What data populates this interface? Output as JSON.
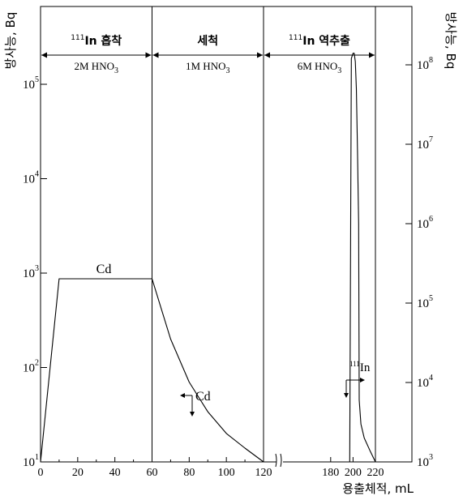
{
  "chart_data": {
    "type": "line",
    "ylabel_left": "방사능, Bq",
    "ylabel_right": "방사능, Bq",
    "xlabel": "용출체적, mL",
    "x_ticks": [
      {
        "label": "0",
        "value": 0
      },
      {
        "label": "20",
        "value": 20
      },
      {
        "label": "40",
        "value": 40
      },
      {
        "label": "60",
        "value": 60
      },
      {
        "label": "80",
        "value": 80
      },
      {
        "label": "100",
        "value": 100
      },
      {
        "label": "120",
        "value": 120
      },
      {
        "label": "180",
        "value": 180
      },
      {
        "label": "200",
        "value": 200
      },
      {
        "label": "220",
        "value": 220
      }
    ],
    "left_axis": {
      "scale": "log",
      "range": [
        10,
        1000000
      ],
      "ticks": [
        {
          "base": "10",
          "exp": "1",
          "value": 10
        },
        {
          "base": "10",
          "exp": "2",
          "value": 100
        },
        {
          "base": "10",
          "exp": "3",
          "value": 1000
        },
        {
          "base": "10",
          "exp": "4",
          "value": 10000
        },
        {
          "base": "10",
          "exp": "5",
          "value": 100000
        }
      ]
    },
    "right_axis": {
      "scale": "log",
      "range": [
        1000,
        1000000000
      ],
      "ticks": [
        {
          "base": "10",
          "exp": "3",
          "value": 1000
        },
        {
          "base": "10",
          "exp": "4",
          "value": 10000
        },
        {
          "base": "10",
          "exp": "5",
          "value": 100000
        },
        {
          "base": "10",
          "exp": "6",
          "value": 1000000
        },
        {
          "base": "10",
          "exp": "7",
          "value": 10000000
        },
        {
          "base": "10",
          "exp": "8",
          "value": 100000000
        }
      ]
    },
    "stages": [
      {
        "name_sup": "111",
        "name": "In   흡착",
        "solution": "2M HNO",
        "solution_sub": "3",
        "x_start": 0,
        "x_end": 60
      },
      {
        "name_sup": "",
        "name": "세척",
        "solution": "1M HNO",
        "solution_sub": "3",
        "x_start": 60,
        "x_end": 120
      },
      {
        "name_sup": "111",
        "name": "In  역추출",
        "solution": "6M HNO",
        "solution_sub": "3",
        "x_start": 120,
        "x_end": 220
      }
    ],
    "series": [
      {
        "name": "Cd",
        "axis": "left",
        "points": [
          [
            0,
            10
          ],
          [
            10,
            870
          ],
          [
            60,
            870
          ],
          [
            70,
            200
          ],
          [
            80,
            70
          ],
          [
            90,
            34
          ],
          [
            100,
            20
          ],
          [
            110,
            14
          ],
          [
            120,
            10
          ]
        ]
      },
      {
        "name": "In",
        "name_sup": "111",
        "axis": "right",
        "points": [
          [
            197,
            1000
          ],
          [
            198.5,
            120000000
          ],
          [
            200,
            140000000
          ],
          [
            201,
            140000000
          ],
          [
            202,
            110000000
          ],
          [
            203,
            50000000
          ],
          [
            204,
            8000000
          ],
          [
            205,
            1000000
          ],
          [
            205.5,
            6000
          ],
          [
            207,
            3000
          ],
          [
            210,
            2000
          ],
          [
            215,
            1400
          ],
          [
            220,
            1000
          ]
        ]
      }
    ],
    "annotations": [
      {
        "series": "Cd",
        "text": "Cd",
        "position": "plateau"
      },
      {
        "series": "Cd",
        "text": "Cd",
        "position": "decline"
      },
      {
        "series": "In",
        "text_sup": "111",
        "text": "In",
        "position": "tail"
      }
    ],
    "axis_break": "between 120 and 180"
  }
}
